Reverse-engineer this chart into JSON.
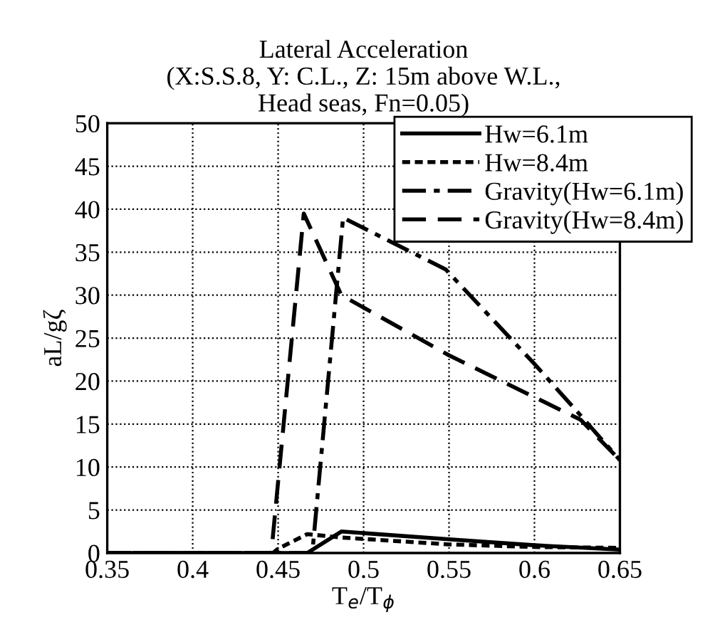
{
  "chart_data": {
    "type": "line",
    "title": "Lateral Acceleration\n(X:S.S.8, Y: C.L., Z: 15m above W.L.,\nHead seas, Fn=0.05)",
    "xlabel": "T$_{e}$/T$_{ϕ}$",
    "ylabel": "aL/gζ",
    "xlim": [
      0.35,
      0.65
    ],
    "ylim": [
      0,
      50
    ],
    "xticks": [
      {
        "value": 0.35,
        "label": "0.35"
      },
      {
        "value": 0.4,
        "label": "0.4"
      },
      {
        "value": 0.45,
        "label": "0.45"
      },
      {
        "value": 0.5,
        "label": "0.5"
      },
      {
        "value": 0.55,
        "label": "0.55"
      },
      {
        "value": 0.6,
        "label": "0.6"
      },
      {
        "value": 0.65,
        "label": "0.65"
      }
    ],
    "yticks": [
      0,
      5,
      10,
      15,
      20,
      25,
      30,
      35,
      40,
      45,
      50
    ],
    "grid": true,
    "legend": "top right",
    "series": [
      {
        "name": "Hw=6.1m",
        "color": "#000000",
        "line_style": "solid",
        "x": [
          0.35,
          0.4,
          0.45,
          0.467,
          0.487,
          0.55,
          0.6,
          0.65
        ],
        "values": [
          0,
          0,
          0,
          0,
          2.5,
          1.6,
          0.9,
          0.4
        ]
      },
      {
        "name": "Hw=8.4m",
        "color": "#000000",
        "line_style": "dotted",
        "x": [
          0.35,
          0.4,
          0.447,
          0.45,
          0.467,
          0.487,
          0.55,
          0.6,
          0.65
        ],
        "values": [
          0,
          0,
          0,
          0.5,
          2.2,
          1.8,
          1.0,
          0.7,
          0.6
        ]
      },
      {
        "name": "Gravity(Hw=6.1m)",
        "color": "#000000",
        "line_style": "dashdot",
        "x": [
          0.35,
          0.4,
          0.45,
          0.47,
          0.488,
          0.548,
          0.6,
          0.627,
          0.65
        ],
        "values": [
          0,
          0,
          0,
          0,
          39,
          33,
          22,
          16,
          10.8
        ]
      },
      {
        "name": "Gravity(Hw=8.4m)",
        "color": "#000000",
        "line_style": "dashed",
        "x": [
          0.35,
          0.4,
          0.446,
          0.465,
          0.487,
          0.55,
          0.627,
          0.65
        ],
        "values": [
          0,
          0,
          0,
          39.5,
          30,
          23,
          15.5,
          10.8
        ]
      }
    ]
  }
}
